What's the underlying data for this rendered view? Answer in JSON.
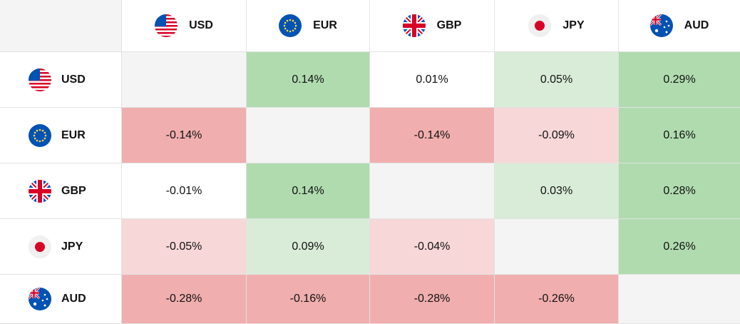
{
  "currencies": [
    {
      "code": "USD",
      "flag_icon": "us-flag-icon"
    },
    {
      "code": "EUR",
      "flag_icon": "eu-flag-icon"
    },
    {
      "code": "GBP",
      "flag_icon": "uk-flag-icon"
    },
    {
      "code": "JPY",
      "flag_icon": "japan-flag-icon"
    },
    {
      "code": "AUD",
      "flag_icon": "australia-flag-icon"
    }
  ],
  "matrix": [
    [
      "",
      "0.14%",
      "0.01%",
      "0.05%",
      "0.29%"
    ],
    [
      "-0.14%",
      "",
      "-0.14%",
      "-0.09%",
      "0.16%"
    ],
    [
      "-0.01%",
      "0.14%",
      "",
      "0.03%",
      "0.28%"
    ],
    [
      "-0.05%",
      "0.09%",
      "-0.04%",
      "",
      "0.26%"
    ],
    [
      "-0.28%",
      "-0.16%",
      "-0.28%",
      "-0.26%",
      ""
    ]
  ],
  "colors": {
    "positive_strong": "#b0dbaf",
    "positive_light": "#d9ecd8",
    "negative_strong": "#f1aeae",
    "negative_light": "#f7d7d8",
    "diagonal": "#f4f4f4",
    "neutral": "#ffffff"
  }
}
